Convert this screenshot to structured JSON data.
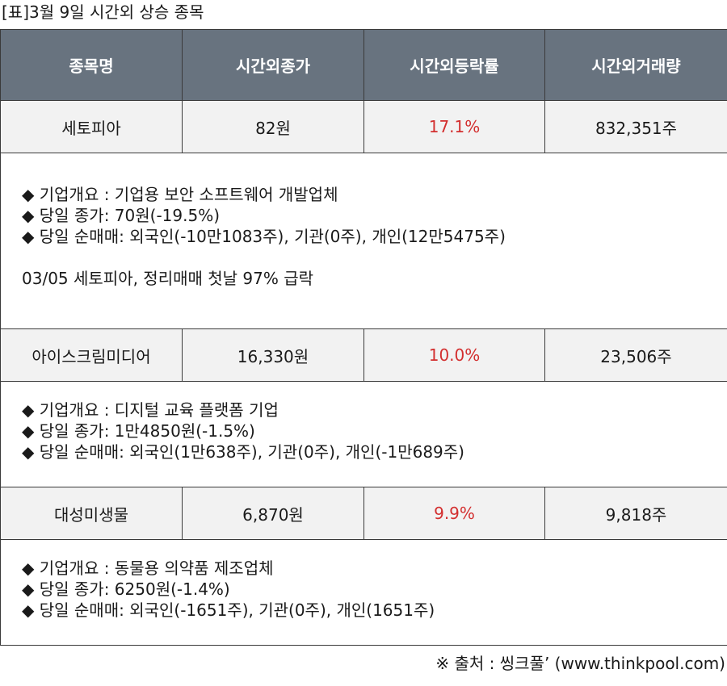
{
  "caption": "[표]3월 9일 시간외 상승 종목",
  "headers": [
    "종목명",
    "시간외종가",
    "시간외등락률",
    "시간외거래량"
  ],
  "stocks": [
    {
      "name": "세토피아",
      "price": "82원",
      "rate": "17.1%",
      "volume": "832,351주",
      "details": [
        "◆ 기업개요 : 기업용 보안 소프트웨어 개발업체",
        "◆ 당일 종가: 70원(-19.5%)",
        "◆ 당일 순매매: 외국인(-10만1083주), 기관(0주), 개인(12만5475주)"
      ],
      "news": "03/05 세토피아, 정리매매 첫날 97% 급락"
    },
    {
      "name": "아이스크림미디어",
      "price": "16,330원",
      "rate": "10.0%",
      "volume": "23,506주",
      "details": [
        "◆ 기업개요 : 디지털 교육 플랫폼 기업",
        "◆ 당일 종가: 1만4850원(-1.5%)",
        "◆ 당일 순매매: 외국인(1만638주), 기관(0주), 개인(-1만689주)"
      ]
    },
    {
      "name": "대성미생물",
      "price": "6,870원",
      "rate": "9.9%",
      "volume": "9,818주",
      "details": [
        "◆ 기업개요 : 동물용 의약품 제조업체",
        "◆ 당일 종가: 6250원(-1.4%)",
        "◆ 당일 순매매: 외국인(-1651주), 기관(0주), 개인(1651주)"
      ]
    }
  ],
  "source": "※ 출처 : 씽크풀’ (www.thinkpool.com)",
  "colors": {
    "header_bg": "#68737f",
    "row_bg": "#f2f2f2",
    "rate_red": "#d32f2f"
  }
}
